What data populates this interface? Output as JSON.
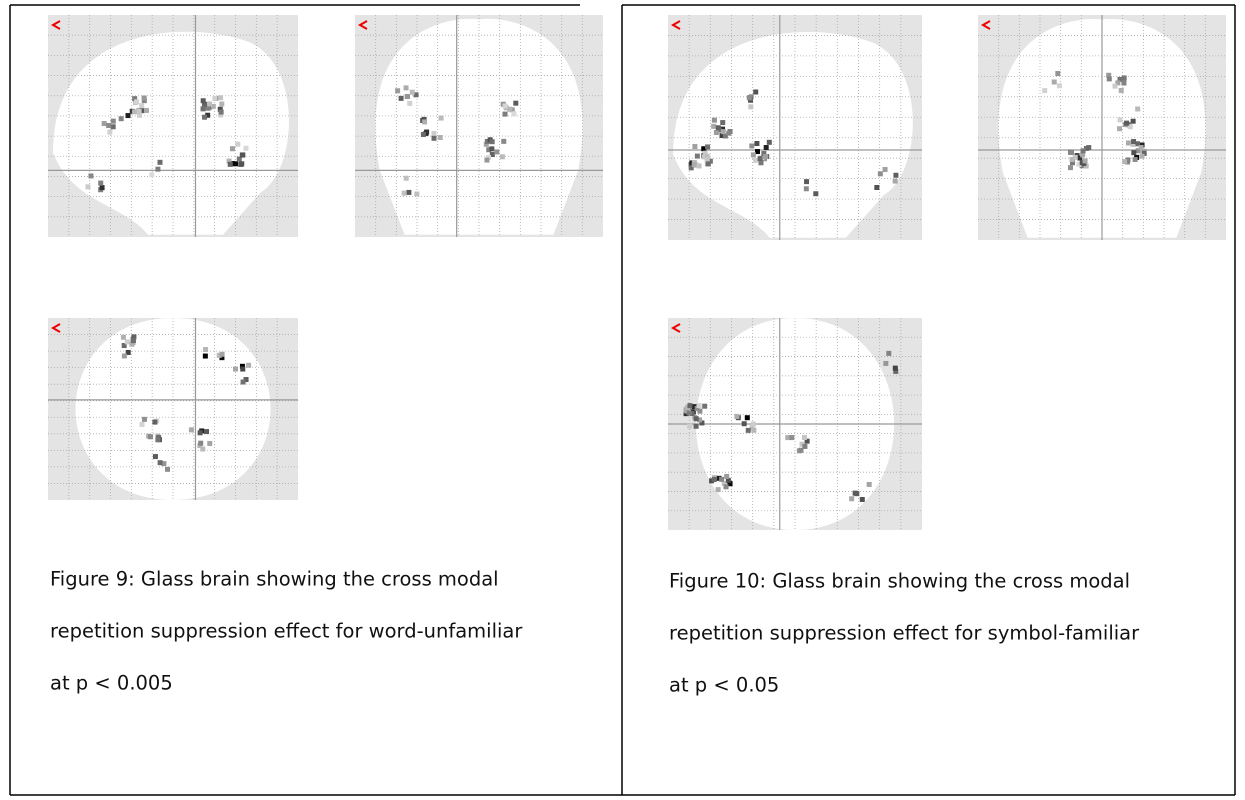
{
  "figures": [
    {
      "caption_lines": [
        "Figure 9: Glass brain showing the cross modal",
        "repetition suppression effect for word-unfamiliar",
        "at p < 0.005"
      ]
    },
    {
      "caption_lines": [
        "Figure 10: Glass brain showing the cross modal",
        "repetition suppression effect for symbol-familiar",
        "at p < 0.05"
      ]
    }
  ]
}
